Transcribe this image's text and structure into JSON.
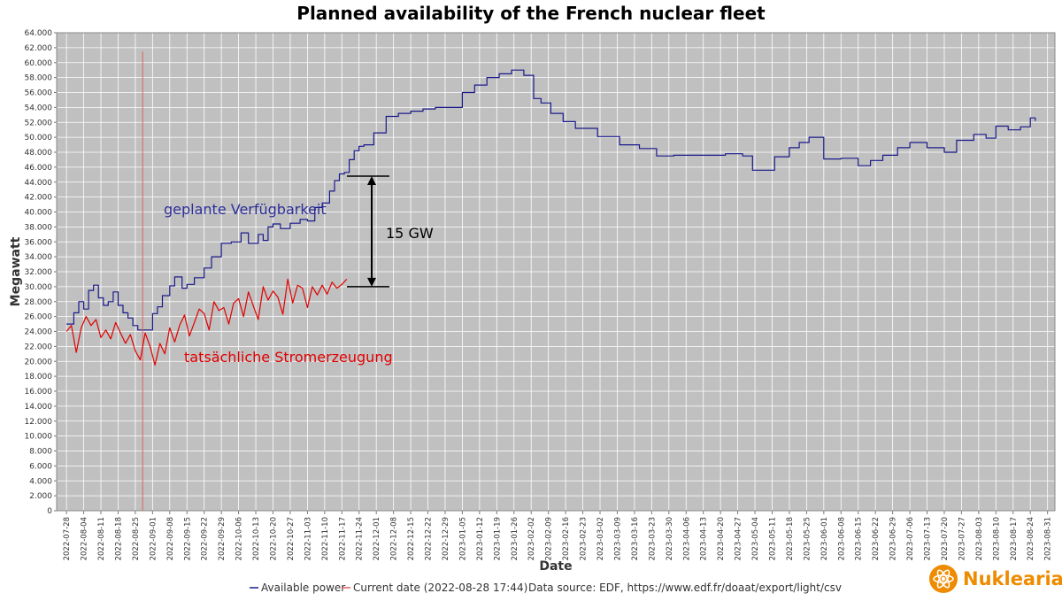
{
  "chart_data": {
    "type": "line",
    "title": "Planned availability of the French nuclear fleet",
    "xlabel": "Date",
    "ylabel": "Megawatt",
    "ylim": [
      0,
      64000
    ],
    "ytick_step": 2000,
    "ytick_labels": [
      "0",
      "2.000",
      "4.000",
      "6.000",
      "8.000",
      "10.000",
      "12.000",
      "14.000",
      "16.000",
      "18.000",
      "20.000",
      "22.000",
      "24.000",
      "26.000",
      "28.000",
      "30.000",
      "32.000",
      "34.000",
      "36.000",
      "38.000",
      "40.000",
      "42.000",
      "44.000",
      "46.000",
      "48.000",
      "50.000",
      "52.000",
      "54.000",
      "56.000",
      "58.000",
      "60.000",
      "62.000",
      "64.000"
    ],
    "x_tick_labels": [
      "2022-07-28",
      "2022-08-04",
      "2022-08-11",
      "2022-08-18",
      "2022-08-25",
      "2022-09-01",
      "2022-09-08",
      "2022-09-15",
      "2022-09-22",
      "2022-09-29",
      "2022-10-06",
      "2022-10-13",
      "2022-10-20",
      "2022-10-27",
      "2022-11-03",
      "2022-11-10",
      "2022-11-17",
      "2022-11-24",
      "2022-12-01",
      "2022-12-08",
      "2022-12-15",
      "2022-12-22",
      "2022-12-29",
      "2023-01-05",
      "2023-01-12",
      "2023-01-19",
      "2023-01-26",
      "2023-02-02",
      "2023-02-09",
      "2023-02-16",
      "2023-02-23",
      "2023-03-02",
      "2023-03-09",
      "2023-03-16",
      "2023-03-23",
      "2023-03-30",
      "2023-04-06",
      "2023-04-13",
      "2023-04-20",
      "2023-04-27",
      "2023-05-04",
      "2023-05-11",
      "2023-05-18",
      "2023-05-25",
      "2023-06-01",
      "2023-06-08",
      "2023-06-15",
      "2023-06-22",
      "2023-06-29",
      "2023-07-06",
      "2023-07-13",
      "2023-07-20",
      "2023-07-27",
      "2023-08-03",
      "2023-08-10",
      "2023-08-17",
      "2023-08-24",
      "2023-08-31"
    ],
    "grid": true,
    "legend_position": "bottom",
    "current_date": "2022-08-28",
    "series": [
      {
        "name": "Available power",
        "color": "#1a1a8c",
        "x": [
          "2022-07-28",
          "2022-07-31",
          "2022-08-02",
          "2022-08-04",
          "2022-08-06",
          "2022-08-08",
          "2022-08-10",
          "2022-08-12",
          "2022-08-14",
          "2022-08-16",
          "2022-08-18",
          "2022-08-20",
          "2022-08-22",
          "2022-08-24",
          "2022-08-26",
          "2022-08-28",
          "2022-09-01",
          "2022-09-03",
          "2022-09-05",
          "2022-09-08",
          "2022-09-10",
          "2022-09-13",
          "2022-09-15",
          "2022-09-18",
          "2022-09-22",
          "2022-09-25",
          "2022-09-29",
          "2022-10-03",
          "2022-10-07",
          "2022-10-10",
          "2022-10-14",
          "2022-10-16",
          "2022-10-18",
          "2022-10-20",
          "2022-10-23",
          "2022-10-27",
          "2022-10-31",
          "2022-11-03",
          "2022-11-06",
          "2022-11-09",
          "2022-11-12",
          "2022-11-14",
          "2022-11-16",
          "2022-11-18",
          "2022-11-20",
          "2022-11-22",
          "2022-11-24",
          "2022-11-26",
          "2022-11-30",
          "2022-12-05",
          "2022-12-10",
          "2022-12-15",
          "2022-12-20",
          "2022-12-25",
          "2023-01-05",
          "2023-01-10",
          "2023-01-15",
          "2023-01-20",
          "2023-01-25",
          "2023-01-30",
          "2023-02-03",
          "2023-02-06",
          "2023-02-10",
          "2023-02-15",
          "2023-02-20",
          "2023-03-01",
          "2023-03-10",
          "2023-03-18",
          "2023-03-25",
          "2023-04-01",
          "2023-04-08",
          "2023-04-15",
          "2023-04-22",
          "2023-04-29",
          "2023-05-03",
          "2023-05-08",
          "2023-05-12",
          "2023-05-18",
          "2023-05-22",
          "2023-05-26",
          "2023-06-01",
          "2023-06-08",
          "2023-06-15",
          "2023-06-20",
          "2023-06-25",
          "2023-07-01",
          "2023-07-06",
          "2023-07-13",
          "2023-07-20",
          "2023-07-25",
          "2023-08-01",
          "2023-08-06",
          "2023-08-10",
          "2023-08-15",
          "2023-08-20",
          "2023-08-24",
          "2023-08-26"
        ],
        "y": [
          25000,
          26500,
          28000,
          27000,
          29500,
          30200,
          28500,
          27500,
          28000,
          29300,
          27500,
          26500,
          25800,
          24800,
          24200,
          24200,
          26400,
          27300,
          28800,
          30100,
          31300,
          29800,
          30300,
          31200,
          32500,
          34000,
          35800,
          36000,
          37200,
          35800,
          37000,
          36200,
          38000,
          38400,
          37800,
          38500,
          39000,
          38800,
          40600,
          41200,
          42800,
          44200,
          45100,
          45300,
          47000,
          48200,
          48800,
          49000,
          50600,
          52800,
          53200,
          53500,
          53800,
          54000,
          56000,
          57000,
          58000,
          58500,
          59000,
          58300,
          55200,
          54600,
          53200,
          52100,
          51200,
          50100,
          49000,
          48500,
          47500,
          47600,
          47600,
          47600,
          47800,
          47500,
          45600,
          45600,
          47400,
          48600,
          49300,
          50000,
          47100,
          47200,
          46200,
          46900,
          47600,
          48600,
          49300,
          48600,
          48000,
          49600,
          50400,
          49900,
          51500,
          51000,
          51400,
          52600,
          52200
        ]
      },
      {
        "name": "Current date (2022-08-28 17:44)",
        "color": "#e06060",
        "x": [
          "2022-08-28",
          "2022-08-28"
        ],
        "y": [
          0,
          61500
        ]
      },
      {
        "name": "",
        "color": "#e00000",
        "x": [
          "2022-07-28",
          "2022-07-30",
          "2022-08-01",
          "2022-08-03",
          "2022-08-05",
          "2022-08-07",
          "2022-08-09",
          "2022-08-11",
          "2022-08-13",
          "2022-08-15",
          "2022-08-17",
          "2022-08-19",
          "2022-08-21",
          "2022-08-23",
          "2022-08-25",
          "2022-08-27",
          "2022-08-29",
          "2022-08-31",
          "2022-09-02",
          "2022-09-04",
          "2022-09-06",
          "2022-09-08",
          "2022-09-10",
          "2022-09-12",
          "2022-09-14",
          "2022-09-16",
          "2022-09-18",
          "2022-09-20",
          "2022-09-22",
          "2022-09-24",
          "2022-09-26",
          "2022-09-28",
          "2022-09-30",
          "2022-10-02",
          "2022-10-04",
          "2022-10-06",
          "2022-10-08",
          "2022-10-10",
          "2022-10-12",
          "2022-10-14",
          "2022-10-16",
          "2022-10-18",
          "2022-10-20",
          "2022-10-22",
          "2022-10-24",
          "2022-10-26",
          "2022-10-28",
          "2022-10-30",
          "2022-11-01",
          "2022-11-03",
          "2022-11-05",
          "2022-11-07",
          "2022-11-09",
          "2022-11-11",
          "2022-11-13",
          "2022-11-15",
          "2022-11-17",
          "2022-11-19"
        ],
        "y": [
          24000,
          24800,
          21200,
          24500,
          26000,
          24800,
          25600,
          23200,
          24200,
          23000,
          25200,
          23800,
          22400,
          23600,
          21400,
          20200,
          23800,
          22000,
          19500,
          22400,
          21000,
          24500,
          22600,
          24800,
          26200,
          23400,
          25200,
          27000,
          26400,
          24200,
          28000,
          26800,
          27200,
          25000,
          27800,
          28400,
          26000,
          29300,
          27400,
          25600,
          30000,
          28200,
          29400,
          28600,
          26300,
          31000,
          27800,
          30200,
          29800,
          27200,
          30000,
          28900,
          30200,
          29000,
          30600,
          29800,
          30300,
          31000
        ]
      }
    ],
    "annotations": [
      {
        "text": "geplante Verfügbarkeit"
      },
      {
        "text": "tatsächliche Stromerzeugung"
      },
      {
        "text": "15 GW",
        "from": 30000,
        "to": 44800
      }
    ]
  },
  "legend": {
    "available_label": "Available power",
    "current_date_label": "Current date (2022-08-28 17:44)",
    "source": "Data source: EDF, https://www.edf.fr/doaat/export/light/csv"
  },
  "brand": {
    "name": "Nuklearia"
  },
  "colors": {
    "plot_bg": "#c0c0c0",
    "grid": "#ffffff",
    "accent_orange": "#ee8b00"
  }
}
